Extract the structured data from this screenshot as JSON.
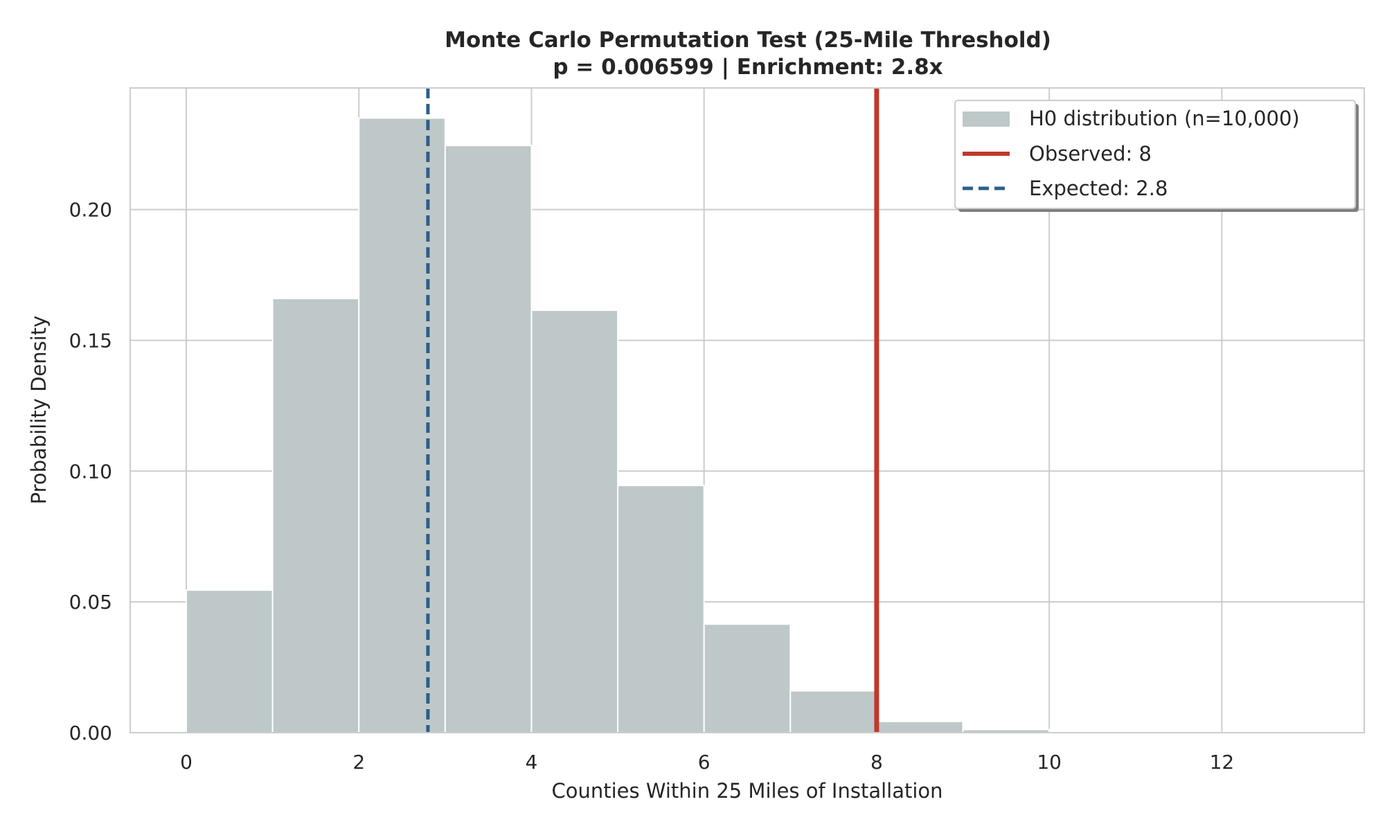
{
  "colors": {
    "histogram_fill": "#bec8c9",
    "histogram_edge": "#ffffff",
    "observed_line": "#c0392b",
    "expected_line": "#2c5f8a",
    "grid": "#cccccc",
    "frame": "#cccccc",
    "text": "#262626"
  },
  "chart_data": {
    "type": "bar",
    "title_line1": "Monte Carlo Permutation Test (25-Mile Threshold)",
    "title_line2": "p = 0.006599 | Enrichment: 2.8x",
    "xlabel": "Counties Within 25 Miles of Installation",
    "ylabel": "Probability Density",
    "xlim": [
      -0.65,
      13.65
    ],
    "ylim": [
      0,
      0.2465
    ],
    "xticks": [
      0,
      2,
      4,
      6,
      8,
      10,
      12
    ],
    "xtick_labels": [
      "0",
      "2",
      "4",
      "6",
      "8",
      "10",
      "12"
    ],
    "yticks": [
      0.0,
      0.05,
      0.1,
      0.15,
      0.2
    ],
    "ytick_labels": [
      "0.00",
      "0.05",
      "0.10",
      "0.15",
      "0.20"
    ],
    "grid": true,
    "bins": [
      {
        "x0": 0,
        "x1": 1,
        "density": 0.0545
      },
      {
        "x0": 1,
        "x1": 2,
        "density": 0.166
      },
      {
        "x0": 2,
        "x1": 3,
        "density": 0.235
      },
      {
        "x0": 3,
        "x1": 4,
        "density": 0.2245
      },
      {
        "x0": 4,
        "x1": 5,
        "density": 0.1615
      },
      {
        "x0": 5,
        "x1": 6,
        "density": 0.0945
      },
      {
        "x0": 6,
        "x1": 7,
        "density": 0.0415
      },
      {
        "x0": 7,
        "x1": 8,
        "density": 0.016
      },
      {
        "x0": 8,
        "x1": 9,
        "density": 0.0043
      },
      {
        "x0": 9,
        "x1": 10,
        "density": 0.0012
      },
      {
        "x0": 10,
        "x1": 11,
        "density": 0.0003
      },
      {
        "x0": 11,
        "x1": 12,
        "density": 0.0001
      },
      {
        "x0": 12,
        "x1": 13,
        "density": 0.0001
      }
    ],
    "observed": 8,
    "expected": 2.8,
    "legend": {
      "placement": "upper right",
      "entries": [
        {
          "label": "H0 distribution (n=10,000)",
          "kind": "patch"
        },
        {
          "label": "Observed: 8",
          "kind": "solid-line"
        },
        {
          "label": "Expected: 2.8",
          "kind": "dashed-line"
        }
      ]
    }
  }
}
